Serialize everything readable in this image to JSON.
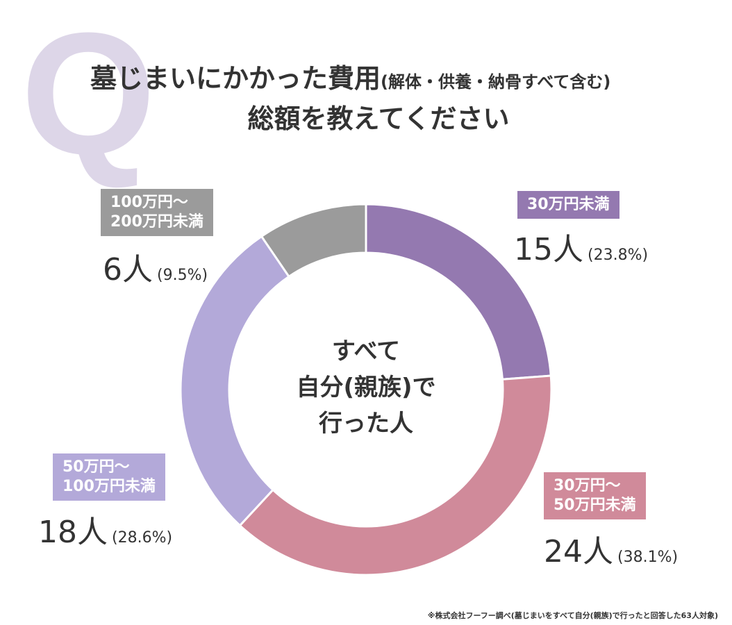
{
  "title": {
    "q": "Q",
    "line1": "墓じまいにかかった費用",
    "line1_note": "(解体・供養・納骨すべて含む)",
    "line2": "総額を教えてください"
  },
  "chart_data": {
    "type": "pie",
    "donut": true,
    "center_label": "すべて\n自分(親族)で\n行った人",
    "categories": [
      "30万円未満",
      "30万円〜\n50万円未満",
      "50万円〜\n100万円未満",
      "100万円〜\n200万円未満"
    ],
    "values": [
      15,
      24,
      18,
      6
    ],
    "value_labels": [
      "15人",
      "24人",
      "18人",
      "6人"
    ],
    "percent_labels": [
      "(23.8%)",
      "(38.1%)",
      "(28.6%)",
      "(9.5%)"
    ],
    "colors": [
      "#9479b0",
      "#d08a9a",
      "#b3a9d9",
      "#9b9b9b"
    ]
  },
  "footnote": "※株式会社フーフー調べ(墓じまいをすべて自分(親族)で行ったと回答した63人対象)"
}
